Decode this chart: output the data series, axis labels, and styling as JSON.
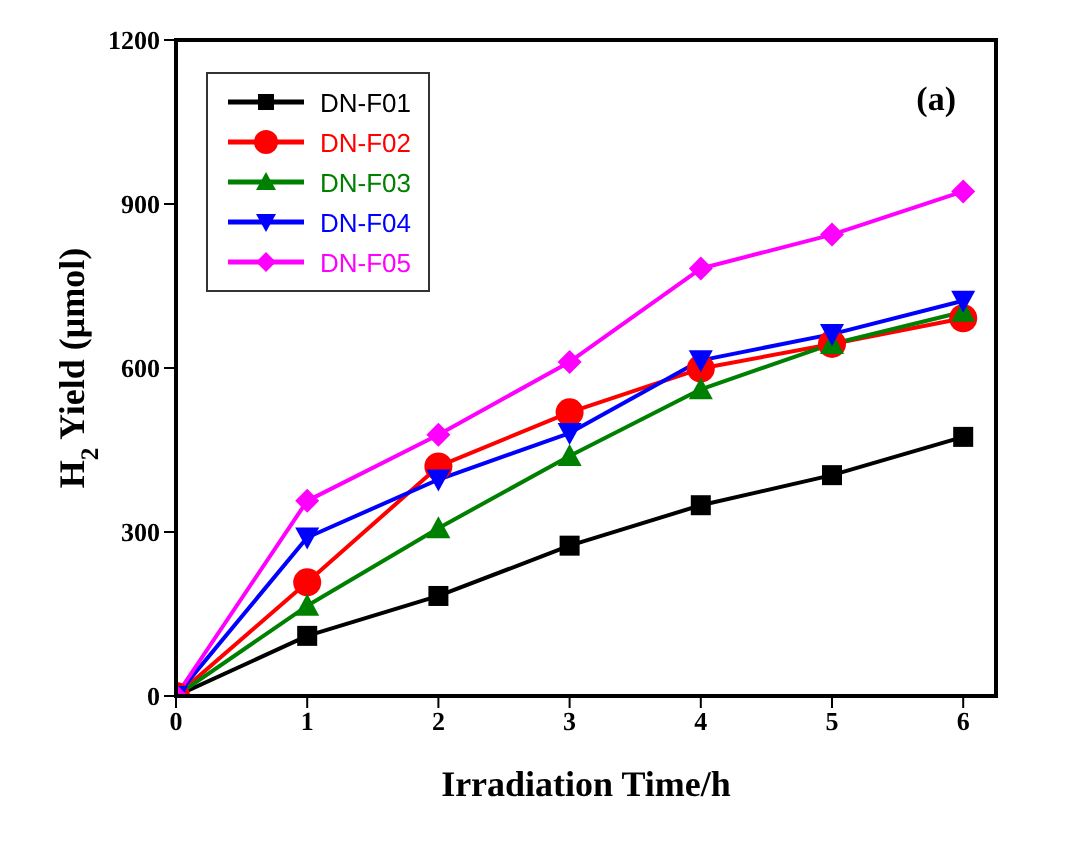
{
  "chart_data": {
    "type": "line",
    "xlabel": "Irradiation Time/h",
    "ylabel": "H$_{2}$ Yield (μmol)",
    "annotations": [
      "(a)"
    ],
    "x": [
      0,
      1,
      2,
      3,
      4,
      5,
      6
    ],
    "xlim": [
      0,
      6.25
    ],
    "xticks": [
      0,
      1,
      2,
      3,
      4,
      5,
      6
    ],
    "ylim": [
      0,
      1200
    ],
    "yticks": [
      0,
      300,
      600,
      900,
      1200
    ],
    "grid": false,
    "legend": "top left",
    "line_style": "solid",
    "series": [
      {
        "name": "DN-F01",
        "color": "#000000",
        "marker": "square",
        "values": [
          0,
          110,
          183,
          275,
          349,
          404,
          474
        ]
      },
      {
        "name": "DN-F02",
        "color": "#ff0000",
        "marker": "circle",
        "values": [
          0,
          208,
          420,
          519,
          599,
          644,
          691
        ]
      },
      {
        "name": "DN-F03",
        "color": "#008000",
        "marker": "triangle",
        "values": [
          0,
          165,
          307,
          439,
          561,
          644,
          703
        ]
      },
      {
        "name": "DN-F04",
        "color": "#0000ff",
        "marker": "triangle-down",
        "values": [
          0,
          290,
          396,
          481,
          614,
          662,
          723
        ]
      },
      {
        "name": "DN-F05",
        "color": "#ff00ff",
        "marker": "diamond",
        "values": [
          0,
          357,
          478,
          611,
          782,
          844,
          923
        ]
      }
    ]
  }
}
